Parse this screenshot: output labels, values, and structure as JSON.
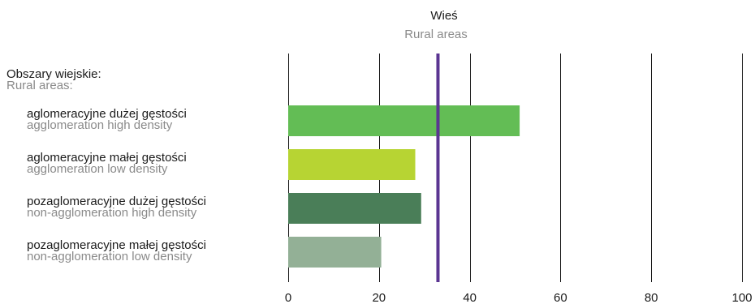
{
  "chart_data": {
    "type": "bar",
    "orientation": "horizontal",
    "title": "Wieś",
    "subtitle": "Rural areas",
    "group_label": {
      "pl": "Obszary wiejskie:",
      "en": "Rural areas:"
    },
    "categories": [
      {
        "pl": "aglomeracyjne dużej gęstości",
        "en": "agglomeration high density"
      },
      {
        "pl": "aglomeracyjne małej gęstości",
        "en": "agglomeration low density"
      },
      {
        "pl": "pozaglomeracyjne dużej gęstości",
        "en": "non-agglomeration high density"
      },
      {
        "pl": "pozaglomeracyjne małej gęstości",
        "en": "non-agglomeration low density"
      }
    ],
    "values": [
      51,
      28,
      29.3,
      20.5
    ],
    "colors": [
      "#63bd55",
      "#b7d433",
      "#4a7e58",
      "#93b096"
    ],
    "reference_line": {
      "value": 33,
      "color": "#5b3592"
    },
    "xlim": [
      0,
      100
    ],
    "xticks": [
      0,
      20,
      40,
      60,
      80,
      100
    ],
    "grid": true
  }
}
